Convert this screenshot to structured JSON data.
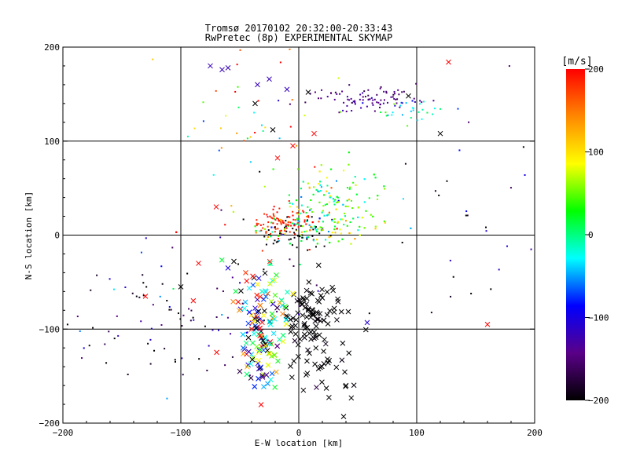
{
  "chart_data": {
    "type": "scatter",
    "title": "Tromsø 20170102 20:32:00-20:33:43",
    "subtitle": "RwPretec (8p) EXPERIMENTAL SKYMAP",
    "xlabel": "E-W location [km]",
    "ylabel": "N-S location [km]",
    "xlim": [
      -200,
      200
    ],
    "ylim": [
      -200,
      200
    ],
    "xticks": [
      -200,
      -100,
      0,
      100,
      200
    ],
    "yticks": [
      -200,
      -100,
      0,
      100,
      200
    ],
    "grid": true,
    "colorbar": {
      "label": "[m/s]",
      "range": [
        -200,
        200
      ],
      "ticks": [
        200,
        100,
        0,
        -100,
        -200
      ],
      "colors": [
        "#000000",
        "#5a0088",
        "#0000ff",
        "#00ffff",
        "#00ff00",
        "#ffff00",
        "#ff8800",
        "#ff0000"
      ]
    },
    "point_styles": [
      "dot",
      "cross"
    ],
    "clusters": [
      {
        "x": 60,
        "y": 145,
        "sx": 25,
        "sy": 7,
        "v": -140,
        "vs": 15,
        "n": 90,
        "marker": "dot"
      },
      {
        "x": 95,
        "y": 135,
        "sx": 15,
        "sy": 8,
        "v": -20,
        "vs": 40,
        "n": 30,
        "marker": "dot"
      },
      {
        "x": 30,
        "y": 40,
        "sx": 22,
        "sy": 18,
        "v": 30,
        "vs": 50,
        "n": 200,
        "marker": "dot"
      },
      {
        "x": 15,
        "y": 8,
        "sx": 30,
        "sy": 10,
        "v": 60,
        "vs": 80,
        "n": 260,
        "marker": "dot"
      },
      {
        "x": -15,
        "y": 15,
        "sx": 12,
        "sy": 8,
        "v": 190,
        "vs": 15,
        "n": 80,
        "marker": "dot"
      },
      {
        "x": 0,
        "y": 0,
        "sx": 20,
        "sy": 10,
        "v": -200,
        "vs": 5,
        "n": 40,
        "marker": "dot"
      },
      {
        "x": 10,
        "y": -80,
        "sx": 12,
        "sy": 18,
        "v": -200,
        "vs": 5,
        "n": 80,
        "marker": "cross"
      },
      {
        "x": 25,
        "y": -130,
        "sx": 20,
        "sy": 25,
        "v": -200,
        "vs": 5,
        "n": 40,
        "marker": "cross"
      },
      {
        "x": -30,
        "y": -110,
        "sx": 10,
        "sy": 30,
        "v": 0,
        "vs": 140,
        "n": 150,
        "marker": "cross"
      },
      {
        "x": -30,
        "y": -60,
        "sx": 15,
        "sy": 20,
        "v": 0,
        "vs": 160,
        "n": 40,
        "marker": "cross"
      },
      {
        "x": -100,
        "y": -80,
        "sx": 60,
        "sy": 40,
        "v": -150,
        "vs": 60,
        "n": 100,
        "marker": "dot"
      },
      {
        "x": -30,
        "y": 120,
        "sx": 40,
        "sy": 40,
        "v": 100,
        "vs": 100,
        "n": 40,
        "marker": "dot"
      },
      {
        "x": 150,
        "y": 20,
        "sx": 50,
        "sy": 60,
        "v": -150,
        "vs": 60,
        "n": 30,
        "marker": "dot"
      }
    ],
    "points": [
      {
        "x": -75,
        "y": 180,
        "v": -120,
        "marker": "cross"
      },
      {
        "x": -60,
        "y": 178,
        "v": -120,
        "marker": "cross"
      },
      {
        "x": -65,
        "y": 176,
        "v": -120,
        "marker": "cross"
      },
      {
        "x": -35,
        "y": 160,
        "v": -120,
        "marker": "cross"
      },
      {
        "x": -25,
        "y": 166,
        "v": -120,
        "marker": "cross"
      },
      {
        "x": -10,
        "y": 155,
        "v": -120,
        "marker": "cross"
      },
      {
        "x": 8,
        "y": 152,
        "v": -200,
        "marker": "cross"
      },
      {
        "x": -37,
        "y": 140,
        "v": -200,
        "marker": "cross"
      },
      {
        "x": -22,
        "y": 112,
        "v": -200,
        "marker": "cross"
      },
      {
        "x": 127,
        "y": 184,
        "v": 200,
        "marker": "cross"
      },
      {
        "x": 93,
        "y": 148,
        "v": -200,
        "marker": "cross"
      },
      {
        "x": 120,
        "y": 108,
        "v": -200,
        "marker": "cross"
      },
      {
        "x": 13,
        "y": 108,
        "v": 200,
        "marker": "cross"
      },
      {
        "x": -5,
        "y": 95,
        "v": 200,
        "marker": "cross"
      },
      {
        "x": -18,
        "y": 82,
        "v": 200,
        "marker": "cross"
      },
      {
        "x": -130,
        "y": -65,
        "v": 200,
        "marker": "cross"
      },
      {
        "x": -85,
        "y": -30,
        "v": 200,
        "marker": "cross"
      },
      {
        "x": -70,
        "y": 30,
        "v": 200,
        "marker": "cross"
      },
      {
        "x": -55,
        "y": -28,
        "v": -200,
        "marker": "cross"
      },
      {
        "x": -60,
        "y": -35,
        "v": -100,
        "marker": "cross"
      },
      {
        "x": -45,
        "y": -40,
        "v": 180,
        "marker": "cross"
      },
      {
        "x": -100,
        "y": -55,
        "v": -200,
        "marker": "cross"
      },
      {
        "x": -40,
        "y": -100,
        "v": 200,
        "marker": "cross"
      },
      {
        "x": 58,
        "y": -93,
        "v": -110,
        "marker": "cross"
      },
      {
        "x": 160,
        "y": -95,
        "v": 200,
        "marker": "cross"
      },
      {
        "x": 38,
        "y": -193,
        "v": -200,
        "marker": "cross"
      },
      {
        "x": 40,
        "y": -160,
        "v": -200,
        "marker": "cross"
      },
      {
        "x": 15,
        "y": -162,
        "v": -170,
        "marker": "cross"
      },
      {
        "x": -50,
        "y": -145,
        "v": -170,
        "marker": "cross"
      }
    ]
  }
}
